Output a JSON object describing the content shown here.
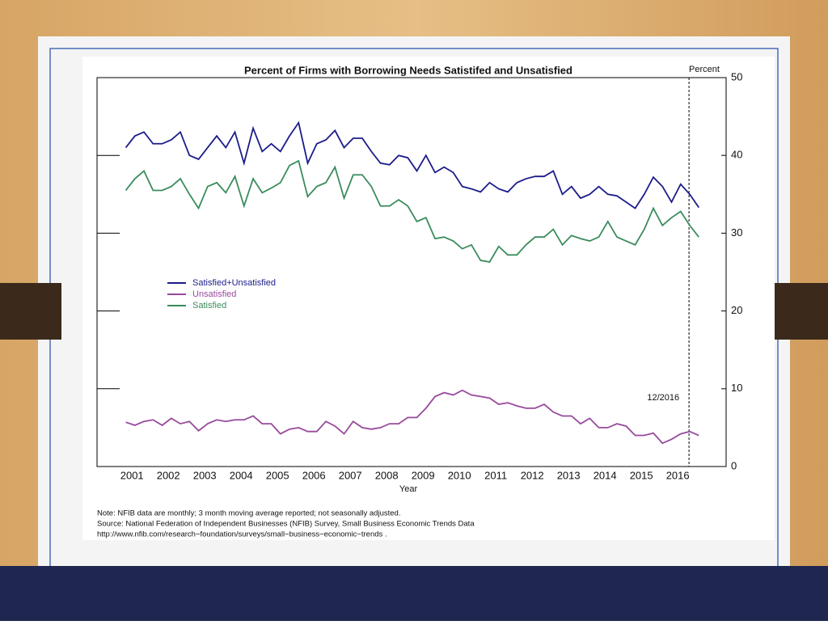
{
  "chart_data": {
    "type": "line",
    "title": "Percent of Firms with Borrowing Needs Satistifed and Unsatisfied",
    "y_label": "Percent",
    "x_label": "Year",
    "x": [
      2000.83,
      2001.08,
      2001.33,
      2001.58,
      2001.83,
      2002.08,
      2002.33,
      2002.58,
      2002.83,
      2003.08,
      2003.33,
      2003.58,
      2003.83,
      2004.08,
      2004.33,
      2004.58,
      2004.83,
      2005.08,
      2005.33,
      2005.58,
      2005.83,
      2006.08,
      2006.33,
      2006.58,
      2006.83,
      2007.08,
      2007.33,
      2007.58,
      2007.83,
      2008.08,
      2008.33,
      2008.58,
      2008.83,
      2009.08,
      2009.33,
      2009.58,
      2009.83,
      2010.08,
      2010.33,
      2010.58,
      2010.83,
      2011.08,
      2011.33,
      2011.58,
      2011.83,
      2012.08,
      2012.33,
      2012.58,
      2012.83,
      2013.08,
      2013.33,
      2013.58,
      2013.83,
      2014.08,
      2014.33,
      2014.58,
      2014.83,
      2015.08,
      2015.33,
      2015.58,
      2015.83,
      2016.08,
      2016.33,
      2016.58
    ],
    "series": [
      {
        "name": "Satisfied+Unsatisfied",
        "color": "#1c1c8a",
        "values": [
          41,
          42.5,
          43,
          41.5,
          41.5,
          42,
          43,
          40,
          39.5,
          41,
          42.5,
          41,
          43,
          39,
          43.5,
          40.5,
          41.5,
          40.5,
          42.5,
          44.2,
          39,
          41.5,
          42,
          43.2,
          41,
          42.2,
          42.2,
          40.5,
          39,
          38.8,
          40,
          39.7,
          38,
          40,
          37.8,
          38.5,
          37.8,
          36,
          35.7,
          35.3,
          36.5,
          35.7,
          35.3,
          36.5,
          37,
          37.3,
          37.3,
          38,
          35,
          36,
          34.5,
          35,
          36,
          35,
          34.8,
          34,
          33.2,
          35,
          37.2,
          36,
          34,
          36.3,
          35,
          33.3
        ]
      },
      {
        "name": "Unsatisfied",
        "color": "#984a9c",
        "values": [
          5.7,
          5.3,
          5.8,
          6,
          5.3,
          6.2,
          5.5,
          5.8,
          4.6,
          5.5,
          6,
          5.8,
          6,
          6,
          6.5,
          5.5,
          5.5,
          4.2,
          4.8,
          5,
          4.5,
          4.5,
          5.8,
          5.2,
          4.2,
          5.8,
          5,
          4.8,
          5,
          5.5,
          5.5,
          6.3,
          6.3,
          7.5,
          9,
          9.5,
          9.2,
          9.8,
          9.2,
          9,
          8.8,
          8,
          8.2,
          7.8,
          7.5,
          7.5,
          8,
          7,
          6.5,
          6.5,
          5.5,
          6.2,
          5,
          5,
          5.5,
          5.2,
          4,
          4,
          4.3,
          3,
          3.5,
          4.2,
          4.5,
          4
        ]
      },
      {
        "name": "Satisfied",
        "color": "#3a8c5c",
        "values": [
          35.5,
          37,
          38,
          35.5,
          35.5,
          36,
          37,
          35,
          33.2,
          36,
          36.5,
          35.2,
          37.3,
          33.5,
          37,
          35.2,
          35.8,
          36.5,
          38.7,
          39.3,
          34.7,
          36,
          36.5,
          38.5,
          34.5,
          37.5,
          37.5,
          36,
          33.5,
          33.5,
          34.3,
          33.5,
          31.5,
          32,
          29.3,
          29.5,
          29,
          28,
          28.5,
          26.5,
          26.3,
          28.3,
          27.2,
          27.2,
          28.5,
          29.5,
          29.5,
          30.5,
          28.5,
          29.7,
          29.3,
          29,
          29.5,
          31.5,
          29.5,
          29,
          28.5,
          30.5,
          33.2,
          31,
          32,
          32.8,
          31,
          29.5
        ]
      }
    ],
    "xlim": [
      2000.04,
      2017.33
    ],
    "xticks": [
      2001,
      2002,
      2003,
      2004,
      2005,
      2006,
      2007,
      2008,
      2009,
      2010,
      2011,
      2012,
      2013,
      2014,
      2015,
      2016
    ],
    "ylim": [
      0,
      50
    ],
    "yticks": [
      0,
      10,
      20,
      30,
      40,
      50
    ],
    "reference_line": {
      "x": 2016.31,
      "label": "12/2016"
    },
    "notes": [
      "Note: NFIB data are monthly; 3 month moving average reported; not seasonally adjusted.",
      "Source: National Federation of Independent Businesses (NFIB) Survey, Small Business Economic Trends Data",
      "http://www.nfib.com/research−foundation/surveys/small−business−economic−trends ."
    ]
  }
}
